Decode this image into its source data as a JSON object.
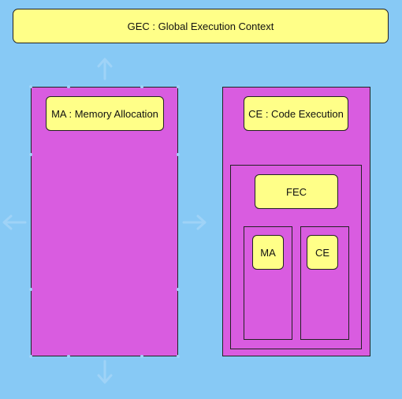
{
  "diagram": {
    "global_context": {
      "label": "GEC : Global Execution Context"
    },
    "memory_allocation": {
      "label": "MA : Memory Allocation"
    },
    "code_execution": {
      "label": "CE : Code Execution"
    },
    "function_context": {
      "label": "FEC",
      "memory_label": "MA",
      "code_label": "CE"
    }
  },
  "colors": {
    "background": "#87c9f5",
    "column_fill": "#d95ce0",
    "label_fill": "#ffff88",
    "selection_handle": "#9fd3f7"
  }
}
